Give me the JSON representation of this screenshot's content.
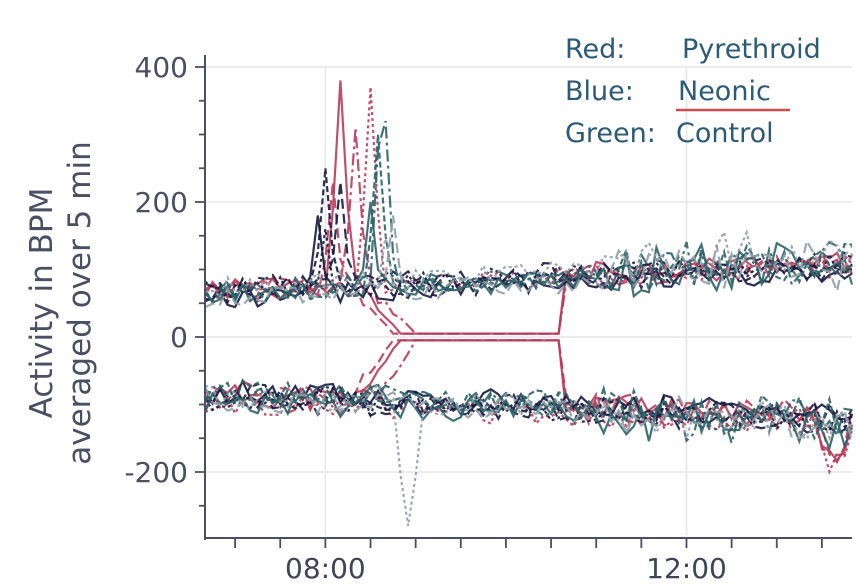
{
  "chart_data": {
    "type": "line",
    "title": "",
    "xlabel": "",
    "ylabel": [
      "Activity in BPM",
      "averaged over 5 min"
    ],
    "x_range": [
      "06:40",
      "13:50"
    ],
    "x_ticks": [
      "08:00",
      "12:00"
    ],
    "ylim": [
      -290,
      400
    ],
    "y_ticks": [
      400,
      200,
      0,
      -200
    ],
    "grid": true,
    "legend_position": "top-right",
    "legend": [
      {
        "group": "Red:",
        "name": "Pyrethroid",
        "color": "#b83d5d",
        "underline": false
      },
      {
        "group": "Blue:",
        "name": "Neonic",
        "color": "#16193f",
        "underline": true
      },
      {
        "group": "Green:",
        "name": "Control",
        "color": "#2e6368",
        "underline": false
      }
    ],
    "colors": {
      "red": "#b83d5d",
      "blue": "#16193f",
      "green": "#2e6368",
      "grey": "#8fa0a8",
      "legend_text": "#2d5a74",
      "underline": "#d24a50"
    },
    "series": [
      {
        "group": "Red",
        "color": "#b83d5d",
        "seed": 11,
        "peakTime": "08:10",
        "peakVal": 380,
        "sticky": true
      },
      {
        "group": "Red",
        "color": "#b83d5d",
        "seed": 12,
        "peakTime": "08:05",
        "peakVal": 230,
        "sticky": true
      },
      {
        "group": "Red",
        "color": "#b83d5d",
        "seed": 13,
        "peakTime": "08:30",
        "peakVal": 370,
        "sticky": false
      },
      {
        "group": "Red",
        "color": "#b83d5d",
        "seed": 14,
        "peakTime": "08:20",
        "peakVal": 310,
        "sticky": true
      },
      {
        "group": "Blue",
        "color": "#16193f",
        "seed": 21,
        "peakTime": "08:00",
        "peakVal": 250,
        "sticky": false
      },
      {
        "group": "Blue",
        "color": "#16193f",
        "seed": 22,
        "peakTime": "07:55",
        "peakVal": 180,
        "sticky": false
      },
      {
        "group": "Blue",
        "color": "#16193f",
        "seed": 23,
        "peakTime": "08:10",
        "peakVal": 230,
        "sticky": false
      },
      {
        "group": "Blue",
        "color": "#16193f",
        "seed": 24,
        "peakTime": "08:00",
        "peakVal": 160,
        "sticky": false
      },
      {
        "group": "Green",
        "color": "#2e6368",
        "seed": 31,
        "peakTime": "08:38",
        "peakVal": 400,
        "sticky": false
      },
      {
        "group": "Green",
        "color": "#2e6368",
        "seed": 32,
        "peakTime": "08:35",
        "peakVal": 300,
        "sticky": false
      },
      {
        "group": "Green",
        "color": "#2e6368",
        "seed": 33,
        "peakTime": "08:30",
        "peakVal": 200,
        "sticky": false
      },
      {
        "group": "Green",
        "color": "#8fa0a8",
        "seed": 34,
        "peakTime": "08:45",
        "peakVal": 180,
        "sticky": false
      },
      {
        "group": "Green",
        "color": "#8fa0a8",
        "seed": 35,
        "peakTime": "08:40",
        "peakVal": 150,
        "sticky": false
      }
    ],
    "notable_points": [
      {
        "time": "08:55",
        "value": -280,
        "description": "minimum excursion of a control trace"
      }
    ]
  }
}
